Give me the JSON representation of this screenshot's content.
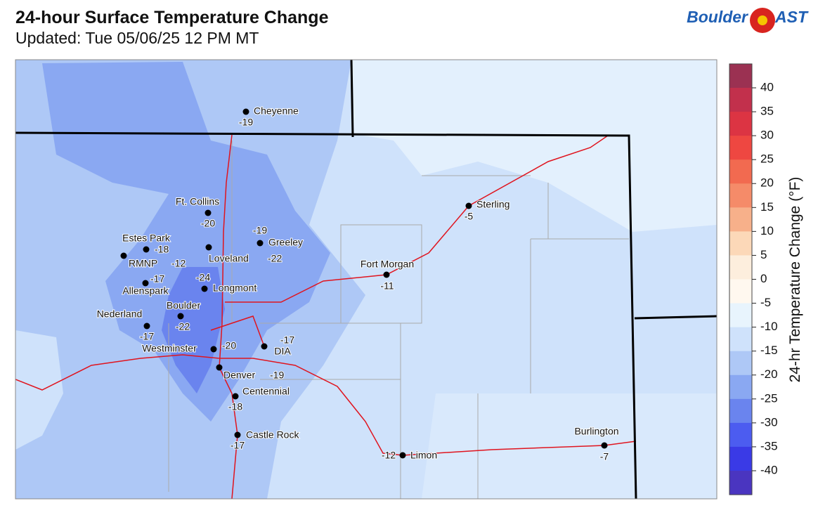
{
  "header": {
    "title": "24-hour Surface Temperature Change",
    "subtitle": "Updated: Tue 05/06/25 12 PM MT",
    "logo_left": "Boulder",
    "logo_right": "AST"
  },
  "stations": [
    {
      "name": "Cheyenne",
      "value": -19
    },
    {
      "name": "Ft. Collins",
      "value": -20
    },
    {
      "name": "Greeley",
      "value": -19
    },
    {
      "name": "Estes Park",
      "value": -18
    },
    {
      "name": "RMNP",
      "value": -12
    },
    {
      "name": "Loveland",
      "value": -22
    },
    {
      "name": "Longmont",
      "value": -24
    },
    {
      "name": "Allenspark",
      "value": -17
    },
    {
      "name": "Fort Morgan",
      "value": -11
    },
    {
      "name": "Sterling",
      "value": -5
    },
    {
      "name": "Boulder",
      "value": -22
    },
    {
      "name": "Nederland",
      "value": -17
    },
    {
      "name": "Westminster",
      "value": -20
    },
    {
      "name": "DIA",
      "value": -17
    },
    {
      "name": "Denver",
      "value": -19
    },
    {
      "name": "Centennial",
      "value": -18
    },
    {
      "name": "Castle Rock",
      "value": -17
    },
    {
      "name": "Limon",
      "value": -12
    },
    {
      "name": "Burlington",
      "value": -7
    }
  ],
  "colorbar": {
    "label": "24-hr Temperature Change (°F)",
    "ticks": [
      40,
      35,
      30,
      25,
      20,
      15,
      10,
      5,
      0,
      -5,
      -10,
      -15,
      -20,
      -25,
      -30,
      -35,
      -40
    ],
    "colors": [
      "#9b3152",
      "#c2304c",
      "#dc3443",
      "#ee4741",
      "#f26a50",
      "#f58b69",
      "#f7b08a",
      "#fcd8b8",
      "#fdeedd",
      "#fff8ef",
      "#e8f4fd",
      "#cfe2fb",
      "#aec8f6",
      "#8aa8f2",
      "#6a84ee",
      "#4c5cf0",
      "#3a3ae6",
      "#4a35c0",
      "#58389e"
    ]
  }
}
